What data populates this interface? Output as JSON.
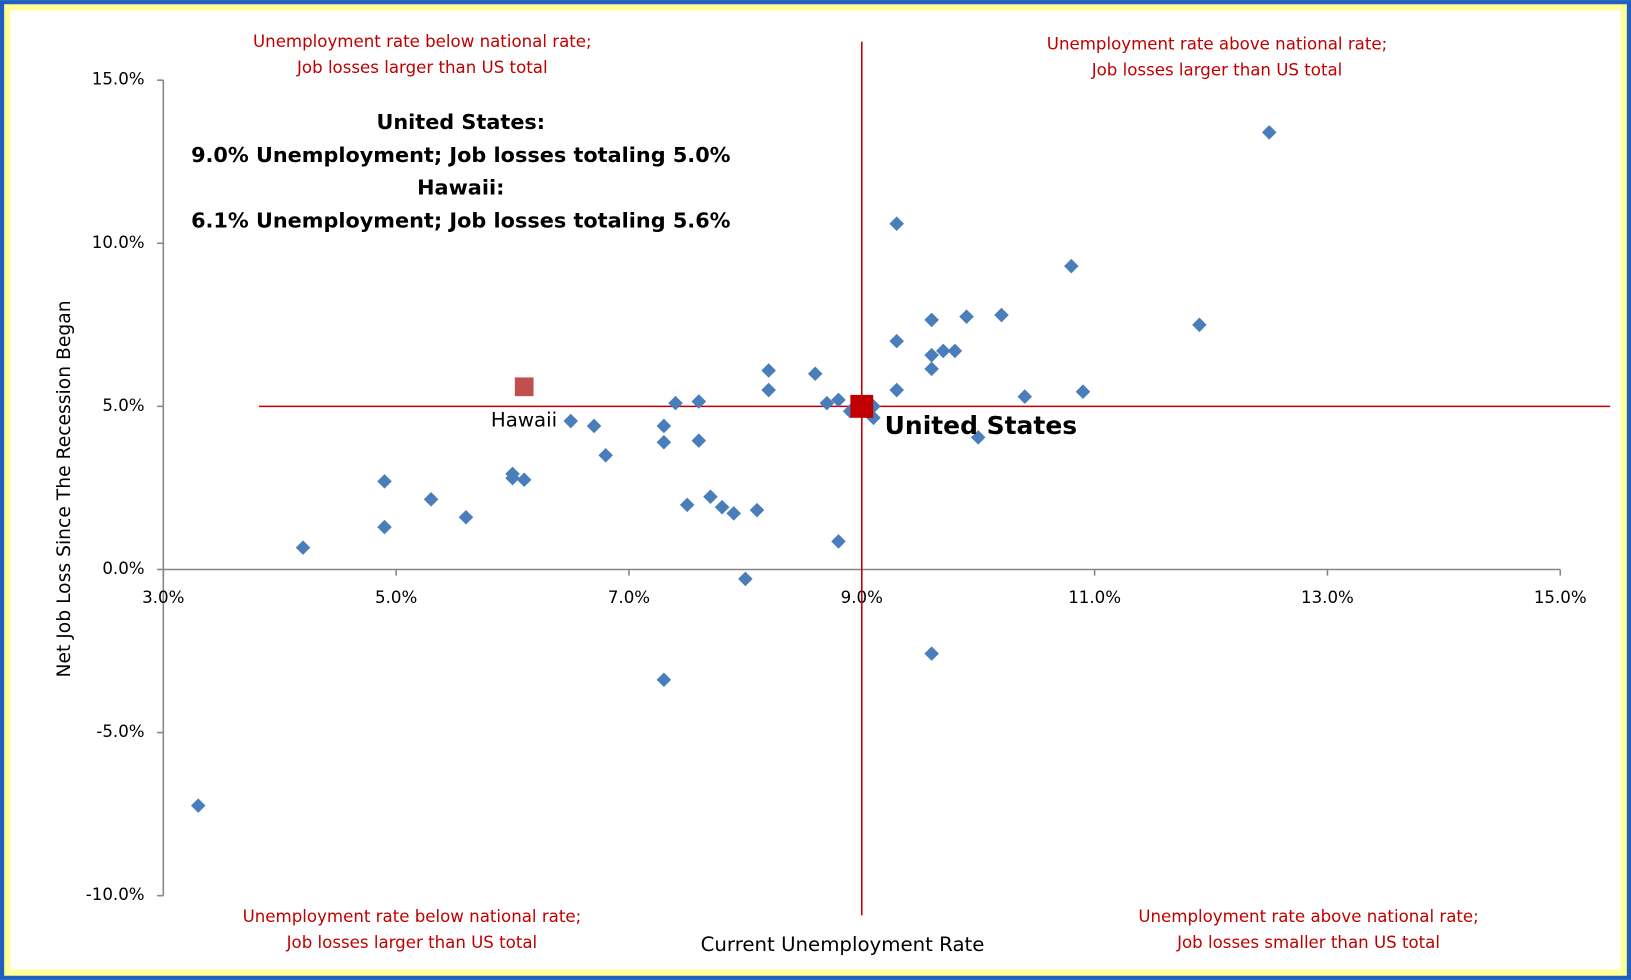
{
  "chart_data": {
    "type": "scatter",
    "x_label": "Current Unemployment Rate",
    "y_label": "Net Job Loss Since The Recession Began",
    "xlim": [
      3,
      15
    ],
    "xticks": [
      {
        "value": 3,
        "label": "3.0%"
      },
      {
        "value": 5,
        "label": "5.0%"
      },
      {
        "value": 7,
        "label": "7.0%"
      },
      {
        "value": 9,
        "label": "9.0%"
      },
      {
        "value": 11,
        "label": "11.0%"
      },
      {
        "value": 13,
        "label": "13.0%"
      },
      {
        "value": 15,
        "label": "15.0%"
      }
    ],
    "ylim": [
      -10,
      15
    ],
    "yticks": [
      {
        "value": -10,
        "label": "-10.0%"
      },
      {
        "value": -5,
        "label": "-5.0%"
      },
      {
        "value": 0,
        "label": "0.0%"
      },
      {
        "value": 5,
        "label": "5.0%"
      },
      {
        "value": 10,
        "label": "10.0%"
      },
      {
        "value": 15,
        "label": "15.0%"
      }
    ],
    "series": [
      {
        "color": "#4a7ebb",
        "marker": "diamond",
        "x": [
          12.5,
          9.3,
          10.8,
          11.9,
          10.2,
          9.9,
          9.6,
          9.3,
          9.8,
          9.7,
          9.6,
          9.6,
          8.2,
          8.6,
          8.2,
          9.3,
          10.9,
          10.4,
          7.4,
          7.6,
          8.7,
          8.8,
          8.9,
          9.1,
          9.1,
          6.5,
          6.7,
          7.3,
          7.3,
          7.6,
          10.0,
          6.8,
          6.0,
          6.0,
          6.1,
          4.9,
          5.3,
          7.7,
          7.5,
          7.8,
          7.9,
          8.1,
          5.6,
          4.9,
          8.8,
          4.2,
          8.0,
          9.6,
          7.3,
          3.3
        ],
        "values": [
          13.4,
          10.6,
          9.3,
          7.5,
          7.8,
          7.75,
          7.65,
          7.0,
          6.7,
          6.7,
          6.57,
          6.15,
          6.1,
          6.0,
          5.5,
          5.5,
          5.45,
          5.3,
          5.1,
          5.15,
          5.1,
          5.2,
          4.85,
          5.0,
          4.65,
          4.55,
          4.4,
          4.4,
          3.9,
          3.95,
          4.05,
          3.5,
          2.93,
          2.8,
          2.75,
          2.7,
          2.15,
          2.23,
          1.98,
          1.91,
          1.72,
          1.82,
          1.6,
          1.3,
          0.86,
          0.67,
          -0.29,
          -2.58,
          -3.38,
          -7.24
        ]
      },
      {
        "color": "#c0504d",
        "marker": "square",
        "label": "Hawaii",
        "x": [
          6.1
        ],
        "values": [
          5.6
        ]
      },
      {
        "color": "#c00000",
        "marker": "square",
        "label": "United States",
        "x": [
          9.0
        ],
        "values": [
          5.0
        ]
      }
    ],
    "info": [
      "United States:",
      "9.0% Unemployment; Job losses totaling 5.0%",
      "Hawaii:",
      "6.1% Unemployment; Job losses totaling 5.6%"
    ],
    "quadrants": [
      [
        "Unemployment rate below national rate;",
        "Job losses larger than US total"
      ],
      [
        "Unemployment rate above national rate;",
        "Job losses larger than US total"
      ],
      [
        "Unemployment rate below national rate;",
        "Job losses larger than US total"
      ],
      [
        "Unemployment rate above national rate;",
        "Job losses smaller than US total"
      ]
    ]
  }
}
